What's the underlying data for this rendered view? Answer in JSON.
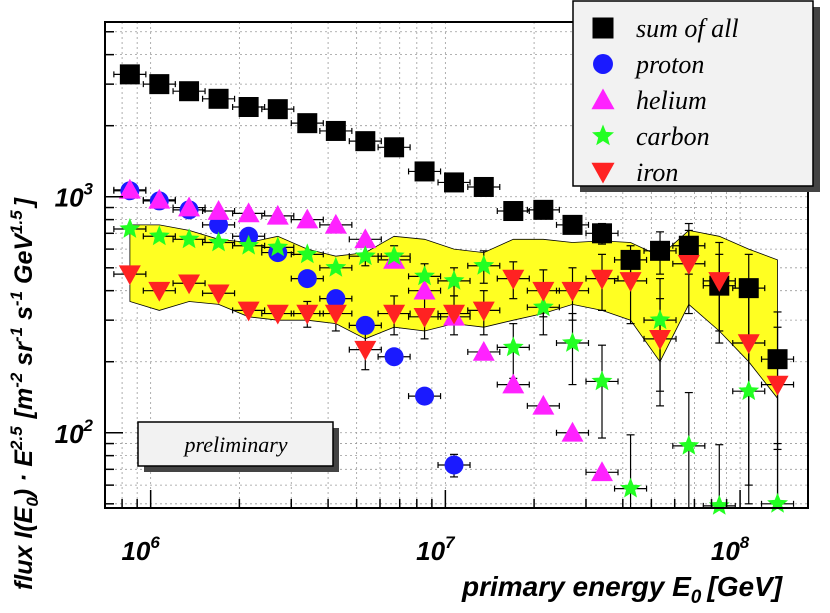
{
  "chart_data": {
    "type": "scatter",
    "title": "",
    "xlabel": {
      "main": "primary energy ",
      "symbol": "E",
      "sub": "0",
      "unit": "[GeV]"
    },
    "ylabel": {
      "prefix": "flux I(E",
      "sub0": "0",
      "mid": ") · E",
      "sup1": "2.5",
      "unit_open": "[m",
      "sup2": "-2",
      "sr": " sr",
      "sup3": "-1",
      "s": " s",
      "sup4": "-1",
      "gev": " GeV",
      "sup5": "1.5",
      "unit_close": "]"
    },
    "x_scale": "log",
    "y_scale": "log",
    "xlim": [
      700000,
      170000000
    ],
    "ylim": [
      48,
      5500
    ],
    "x_ticks": [
      {
        "base": "10",
        "exp": "6",
        "value": 1000000
      },
      {
        "base": "10",
        "exp": "7",
        "value": 10000000
      },
      {
        "base": "10",
        "exp": "8",
        "value": 100000000
      }
    ],
    "y_ticks": [
      {
        "base": "10",
        "exp": "2",
        "value": 100
      },
      {
        "base": "10",
        "exp": "3",
        "value": 1000
      }
    ],
    "grid": true,
    "legend_position": "top-right",
    "annotation": "preliminary",
    "band": {
      "color": "#ffff22",
      "x": [
        850000,
        1070000,
        1350000,
        1700000,
        2150000,
        2700000,
        3400000,
        4250000,
        5350000,
        6700000,
        8500000,
        10700000,
        13500000,
        17000000,
        21500000,
        27000000,
        34000000,
        42500000,
        53500000,
        67000000,
        85000000,
        107000000,
        134000000
      ],
      "upper": [
        760,
        760,
        720,
        660,
        640,
        680,
        600,
        560,
        580,
        680,
        660,
        600,
        580,
        660,
        660,
        640,
        650,
        640,
        560,
        720,
        680,
        600,
        540
      ],
      "lower": [
        360,
        330,
        360,
        350,
        310,
        300,
        300,
        290,
        250,
        280,
        270,
        290,
        280,
        300,
        320,
        350,
        330,
        300,
        200,
        350,
        270,
        200,
        140
      ]
    },
    "series": [
      {
        "name": "sum of all",
        "marker": "square",
        "color": "#000000",
        "x": [
          850000,
          1070000,
          1350000,
          1700000,
          2150000,
          2700000,
          3400000,
          4250000,
          5350000,
          6700000,
          8500000,
          10700000,
          13500000,
          17000000,
          21500000,
          27000000,
          34000000,
          42500000,
          53500000,
          67000000,
          85000000,
          107000000,
          134000000
        ],
        "y": [
          3300,
          3000,
          2800,
          2600,
          2400,
          2350,
          2050,
          1900,
          1720,
          1620,
          1280,
          1150,
          1100,
          870,
          880,
          760,
          700,
          540,
          590,
          620,
          420,
          410,
          205
        ],
        "err": [
          0,
          0,
          0,
          0,
          0,
          0,
          0,
          0,
          0,
          0,
          0,
          0,
          0,
          0,
          50,
          50,
          70,
          80,
          120,
          150,
          150,
          160,
          120
        ]
      },
      {
        "name": "proton",
        "marker": "circle",
        "color": "#1a1aff",
        "x": [
          850000,
          1070000,
          1350000,
          1700000,
          2150000,
          2700000,
          3400000,
          4250000,
          5350000,
          6700000,
          8500000,
          10700000
        ],
        "y": [
          1060,
          960,
          880,
          760,
          680,
          580,
          450,
          370,
          285,
          210,
          143,
          73
        ],
        "err": [
          0,
          0,
          0,
          0,
          0,
          0,
          0,
          0,
          0,
          0,
          0,
          8
        ]
      },
      {
        "name": "helium",
        "marker": "triangle-up",
        "color": "#ff22ff",
        "x": [
          850000,
          1070000,
          1350000,
          1700000,
          2150000,
          2700000,
          3400000,
          4250000,
          5350000,
          6700000,
          8500000,
          10700000,
          13500000,
          17000000,
          21500000,
          27000000,
          34000000
        ],
        "y": [
          1070,
          970,
          900,
          870,
          850,
          830,
          800,
          760,
          660,
          540,
          400,
          310,
          220,
          160,
          130,
          100,
          68
        ],
        "err": [
          0,
          0,
          0,
          0,
          0,
          0,
          0,
          0,
          0,
          0,
          0,
          0,
          0,
          0,
          0,
          0,
          0
        ]
      },
      {
        "name": "carbon",
        "marker": "star",
        "color": "#22ff22",
        "x": [
          850000,
          1070000,
          1350000,
          1700000,
          2150000,
          2700000,
          3400000,
          4250000,
          5350000,
          6700000,
          8500000,
          10700000,
          13500000,
          17000000,
          21500000,
          27000000,
          34000000,
          42500000,
          53500000,
          67000000,
          85000000,
          107000000,
          134000000
        ],
        "y": [
          730,
          680,
          660,
          640,
          620,
          610,
          570,
          500,
          560,
          560,
          460,
          440,
          510,
          230,
          340,
          240,
          165,
          58,
          300,
          88,
          49,
          150,
          50
        ],
        "err": [
          0,
          0,
          0,
          0,
          0,
          0,
          0,
          0,
          50,
          60,
          60,
          60,
          80,
          60,
          80,
          80,
          70,
          40,
          150,
          60,
          40,
          100,
          40
        ]
      },
      {
        "name": "iron",
        "marker": "triangle-down",
        "color": "#ff2222",
        "x": [
          850000,
          1070000,
          1350000,
          1700000,
          2150000,
          2700000,
          3400000,
          4250000,
          5350000,
          6700000,
          8500000,
          10700000,
          13500000,
          17000000,
          21500000,
          27000000,
          34000000,
          42500000,
          53500000,
          67000000,
          85000000,
          107000000,
          134000000
        ],
        "y": [
          470,
          400,
          430,
          390,
          330,
          320,
          320,
          320,
          225,
          320,
          310,
          320,
          330,
          450,
          400,
          400,
          450,
          440,
          250,
          520,
          440,
          240,
          160
        ],
        "err": [
          0,
          0,
          0,
          0,
          0,
          0,
          40,
          50,
          40,
          60,
          60,
          60,
          70,
          80,
          90,
          100,
          120,
          150,
          120,
          200,
          200,
          180,
          120
        ]
      }
    ]
  }
}
